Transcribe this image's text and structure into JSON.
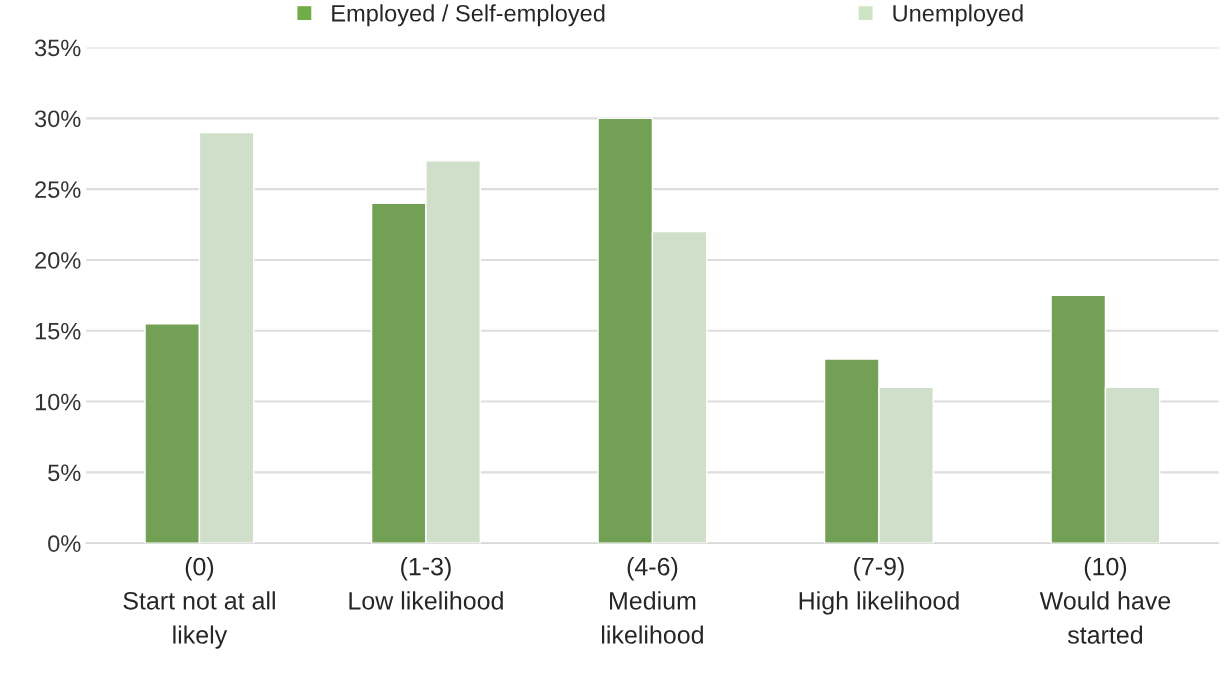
{
  "chart_data": {
    "type": "bar",
    "categories": [
      "(0)\nStart not at all\nlikely",
      "(1-3)\nLow likelihood",
      "(4-6)\nMedium\nlikelihood",
      "(7-9)\nHigh likelihood",
      "(10)\nWould have\nstarted"
    ],
    "series": [
      {
        "name": "Employed / Self-employed",
        "color": "#70ad47",
        "values": [
          15.5,
          24,
          30,
          13,
          17.5
        ]
      },
      {
        "name": "Unemployed",
        "color": "#cfe3c5",
        "values": [
          29,
          27,
          22,
          11,
          11
        ]
      }
    ],
    "ylim": [
      0,
      35
    ],
    "yticks": [
      {
        "value": 0,
        "label": "0%"
      },
      {
        "value": 5,
        "label": "5%"
      },
      {
        "value": 10,
        "label": "10%"
      },
      {
        "value": 15,
        "label": "15%"
      },
      {
        "value": 20,
        "label": "20%"
      },
      {
        "value": 25,
        "label": "25%"
      },
      {
        "value": 30,
        "label": "30%"
      },
      {
        "value": 35,
        "label": "35%"
      }
    ],
    "grid": "y",
    "legend": "top",
    "marker": "square"
  }
}
